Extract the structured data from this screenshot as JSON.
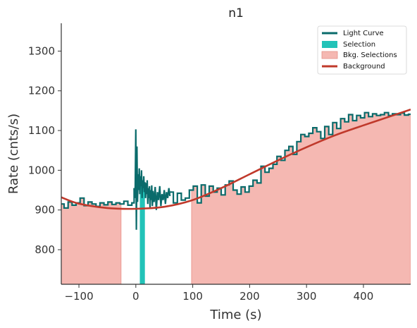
{
  "chart_data": {
    "type": "line",
    "title": "n1",
    "xlabel": "Time (s)",
    "ylabel": "Rate (cnts/s)",
    "xlim": [
      -131,
      483
    ],
    "ylim": [
      713,
      1370
    ],
    "xticks": [
      -100,
      0,
      100,
      200,
      300,
      400
    ],
    "xtick_labels": [
      "−100",
      "0",
      "100",
      "200",
      "300",
      "400"
    ],
    "yticks": [
      800,
      900,
      1000,
      1100,
      1200,
      1300
    ],
    "ytick_labels": [
      "800",
      "900",
      "1000",
      "1100",
      "1200",
      "1300"
    ],
    "legend_position": "top-right",
    "legend": [
      {
        "label": "Light Curve",
        "kind": "line",
        "color": "#0a6b6b"
      },
      {
        "label": "Selection",
        "kind": "patch",
        "color": "#22c3b8"
      },
      {
        "label": "Bkg. Selections",
        "kind": "patch",
        "color": "#f5b8b2"
      },
      {
        "label": "Background",
        "kind": "line",
        "color": "#c0392b"
      }
    ],
    "background_selections": [
      [
        -131,
        -26
      ],
      [
        98,
        483
      ]
    ],
    "selection": [
      7,
      16
    ],
    "background_fit": {
      "x": [
        -131,
        -100,
        -50,
        0,
        50,
        100,
        150,
        200,
        250,
        300,
        350,
        400,
        450,
        483
      ],
      "y": [
        932,
        916,
        905,
        903,
        908,
        925,
        955,
        990,
        1025,
        1058,
        1088,
        1113,
        1137,
        1153
      ]
    },
    "light_curve": {
      "step_x": [
        -131,
        -126,
        -119,
        -112,
        -105,
        -98,
        -91,
        -84,
        -77,
        -70,
        -63,
        -56,
        -49,
        -42,
        -35,
        -28,
        -21,
        -14,
        -7,
        -3
      ],
      "step_y": [
        915,
        905,
        920,
        912,
        918,
        930,
        911,
        920,
        915,
        909,
        918,
        913,
        920,
        914,
        918,
        915,
        922,
        912,
        918,
        955
      ],
      "burst_x": [
        -3,
        -2,
        -1,
        0,
        1,
        2,
        3,
        4,
        5,
        6,
        7,
        8,
        9,
        10,
        11,
        12,
        13,
        14,
        15,
        16,
        17,
        18,
        19,
        20,
        21,
        22,
        23,
        24,
        25,
        26,
        27,
        28,
        29,
        30,
        32,
        34,
        36,
        38,
        40,
        42,
        44,
        46,
        48,
        50,
        52,
        54,
        56,
        58,
        60
      ],
      "burst_y": [
        955,
        930,
        960,
        1103,
        850,
        1060,
        920,
        990,
        950,
        1005,
        940,
        985,
        960,
        1000,
        930,
        975,
        955,
        985,
        945,
        970,
        930,
        968,
        940,
        975,
        915,
        955,
        930,
        960,
        905,
        950,
        925,
        962,
        910,
        948,
        920,
        958,
        900,
        945,
        925,
        960,
        910,
        940,
        925,
        950,
        915,
        945,
        930,
        955,
        935
      ],
      "tail_x": [
        60,
        66,
        73,
        80,
        87,
        94,
        101,
        108,
        115,
        122,
        129,
        136,
        143,
        150,
        157,
        164,
        171,
        178,
        185,
        192,
        199,
        206,
        213,
        220,
        227,
        234,
        241,
        248,
        255,
        262,
        269,
        276,
        283,
        290,
        297,
        304,
        311,
        318,
        325,
        332,
        339,
        346,
        353,
        360,
        367,
        374,
        381,
        388,
        395,
        402,
        409,
        416,
        423,
        430,
        437,
        444,
        451,
        458,
        465,
        472,
        479,
        483
      ],
      "tail_y": [
        945,
        918,
        942,
        925,
        930,
        950,
        960,
        918,
        963,
        935,
        960,
        945,
        955,
        938,
        963,
        973,
        950,
        940,
        958,
        945,
        960,
        975,
        968,
        1010,
        995,
        1005,
        1015,
        1035,
        1025,
        1050,
        1060,
        1040,
        1072,
        1090,
        1085,
        1093,
        1107,
        1097,
        1080,
        1110,
        1090,
        1120,
        1105,
        1130,
        1122,
        1140,
        1125,
        1138,
        1132,
        1145,
        1135,
        1142,
        1138,
        1140,
        1145,
        1138,
        1142,
        1140,
        1144,
        1139,
        1141,
        1140
      ]
    }
  }
}
